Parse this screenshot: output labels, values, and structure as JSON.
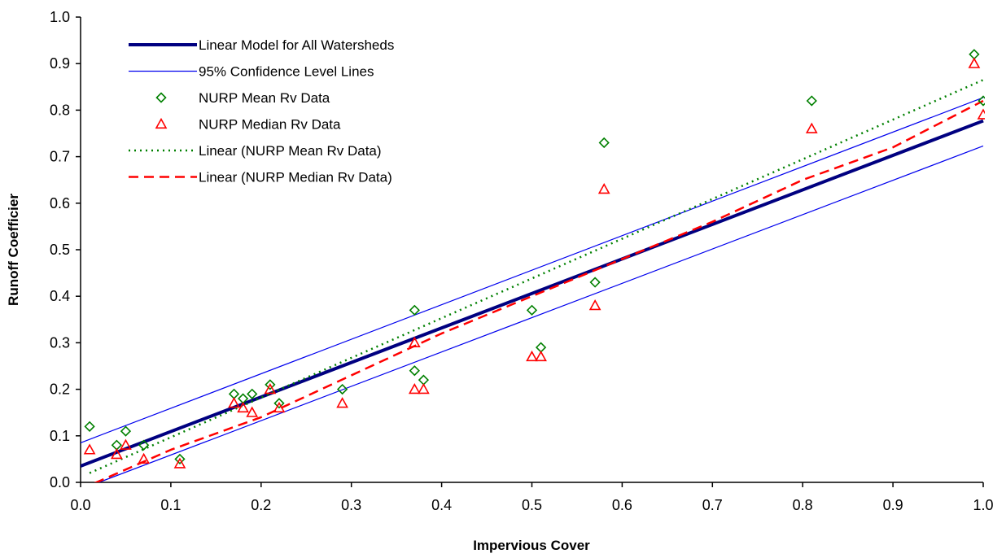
{
  "chart_data": {
    "type": "scatter",
    "title": "",
    "xlabel": "Impervious Cover",
    "ylabel": "Runoff Coefficier",
    "xlim": [
      0.0,
      1.0
    ],
    "ylim": [
      0.0,
      1.0
    ],
    "x_ticks": [
      "0.0",
      "0.1",
      "0.2",
      "0.3",
      "0.4",
      "0.5",
      "0.6",
      "0.7",
      "0.8",
      "0.9",
      "1.0"
    ],
    "y_ticks": [
      "0.0",
      "0.1",
      "0.2",
      "0.3",
      "0.4",
      "0.5",
      "0.6",
      "0.7",
      "0.8",
      "0.9",
      "1.0"
    ],
    "grid": false,
    "legend_position": "top-left",
    "series": [
      {
        "name": "Linear Model for All Watersheds",
        "kind": "line",
        "style": "thick-solid",
        "color": "#000080",
        "x": [
          0.0,
          1.0
        ],
        "y": [
          0.035,
          0.777
        ]
      },
      {
        "name": "95% Confidence Level Lines",
        "kind": "line",
        "style": "thin-solid",
        "color": "#0000ee",
        "lines": [
          {
            "x": [
              0.0,
              1.0
            ],
            "y": [
              0.085,
              0.827
            ]
          },
          {
            "x": [
              0.0,
              1.0
            ],
            "y": [
              -0.015,
              0.723
            ]
          }
        ]
      },
      {
        "name": "NURP Mean Rv Data",
        "kind": "scatter",
        "marker": "diamond",
        "color": "#008000",
        "x": [
          0.01,
          0.04,
          0.05,
          0.07,
          0.11,
          0.17,
          0.18,
          0.19,
          0.21,
          0.22,
          0.29,
          0.37,
          0.37,
          0.38,
          0.5,
          0.51,
          0.57,
          0.58,
          0.81,
          0.99,
          1.0
        ],
        "y": [
          0.12,
          0.08,
          0.11,
          0.08,
          0.05,
          0.19,
          0.18,
          0.19,
          0.21,
          0.17,
          0.2,
          0.37,
          0.24,
          0.22,
          0.37,
          0.29,
          0.43,
          0.73,
          0.82,
          0.92,
          0.82
        ]
      },
      {
        "name": "NURP Median Rv Data",
        "kind": "scatter",
        "marker": "triangle",
        "color": "#ff0000",
        "x": [
          0.01,
          0.04,
          0.05,
          0.07,
          0.11,
          0.17,
          0.18,
          0.19,
          0.21,
          0.22,
          0.29,
          0.37,
          0.37,
          0.38,
          0.5,
          0.51,
          0.57,
          0.58,
          0.81,
          0.99,
          1.0
        ],
        "y": [
          0.07,
          0.06,
          0.08,
          0.05,
          0.04,
          0.17,
          0.16,
          0.15,
          0.2,
          0.16,
          0.17,
          0.3,
          0.2,
          0.2,
          0.27,
          0.27,
          0.38,
          0.63,
          0.76,
          0.9,
          0.79
        ]
      },
      {
        "name": "Linear (NURP Mean Rv Data)",
        "kind": "line",
        "style": "dotted",
        "color": "#008000",
        "x": [
          0.01,
          1.0
        ],
        "y": [
          0.02,
          0.865
        ]
      },
      {
        "name": "Linear (NURP Median Rv Data)",
        "kind": "line",
        "style": "dashed",
        "color": "#ff0000",
        "x": [
          0.0,
          0.1,
          0.2,
          0.3,
          0.4,
          0.5,
          0.6,
          0.7,
          0.8,
          0.9,
          1.0
        ],
        "y": [
          -0.015,
          0.07,
          0.14,
          0.23,
          0.32,
          0.4,
          0.48,
          0.56,
          0.65,
          0.72,
          0.82
        ]
      }
    ]
  }
}
